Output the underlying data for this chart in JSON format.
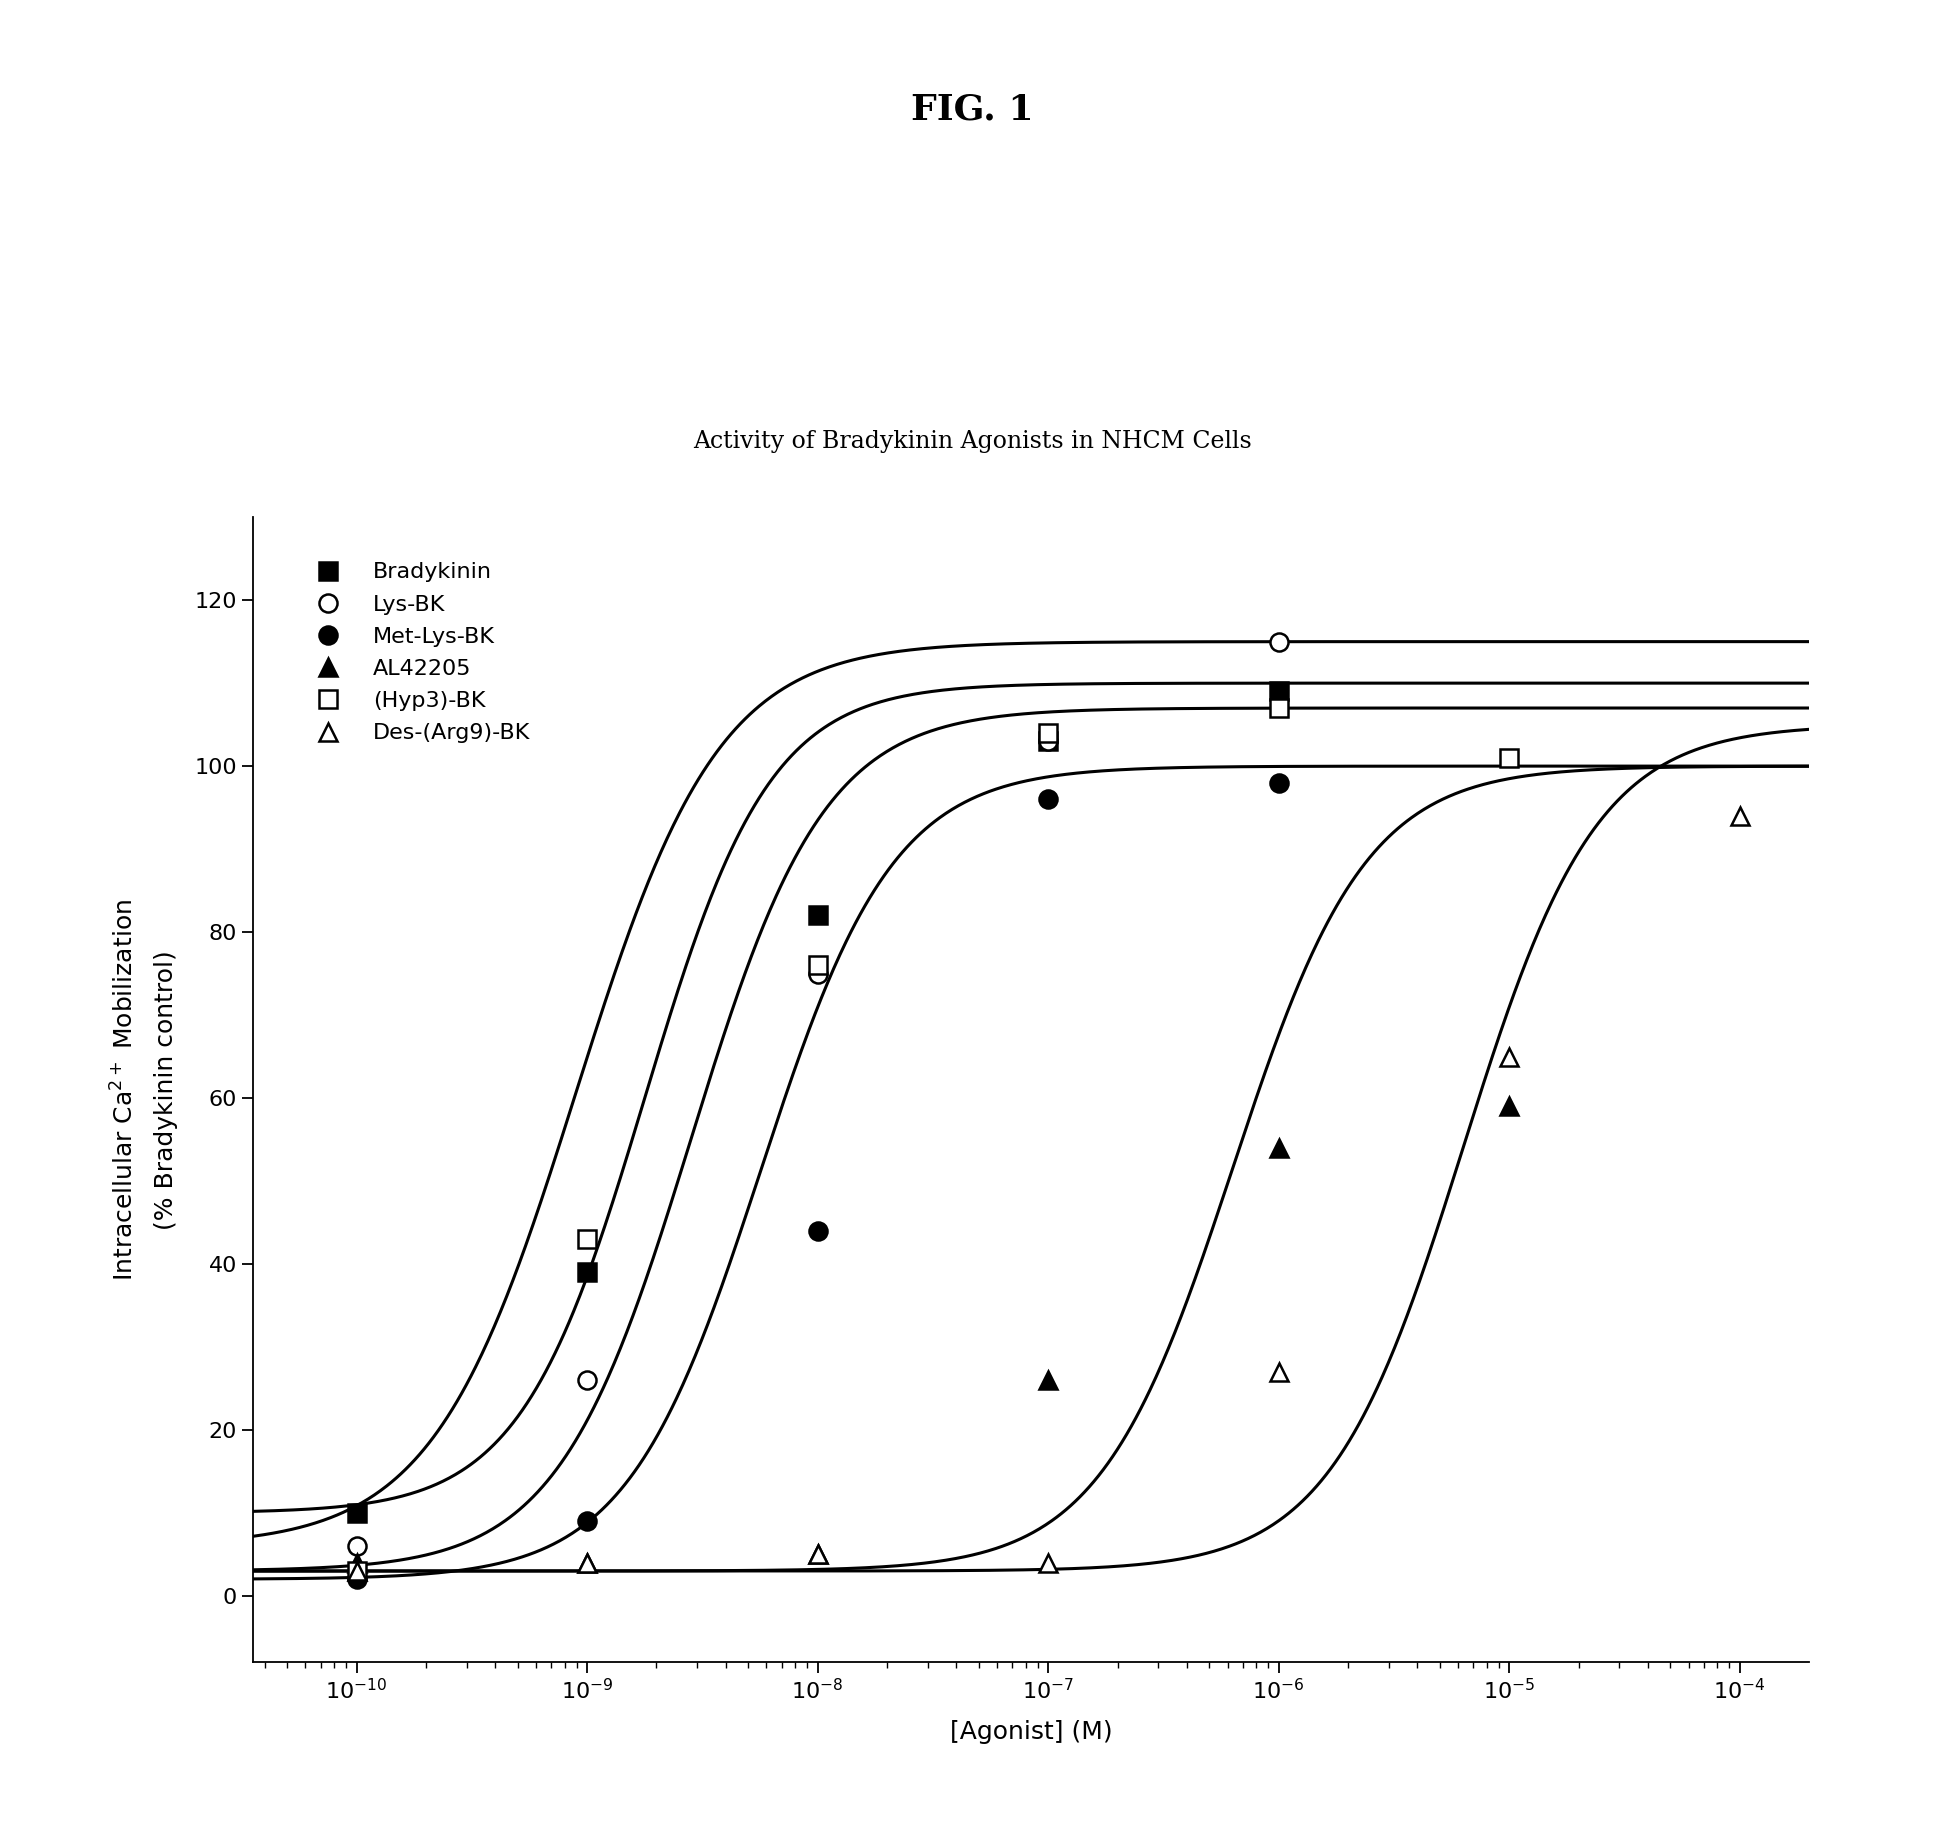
{
  "title": "Activity of Bradykinin Agonists in NHCM Cells",
  "fig_title": "FIG. 1",
  "xlabel": "[Agonist] (M)",
  "ylabel": "Intracellular Ca$^{2+}$ Mobilization\n(% Bradykinin control)",
  "xlim_log": [
    -10.45,
    -3.7
  ],
  "ylim": [
    -8,
    130
  ],
  "yticks": [
    0,
    20,
    40,
    60,
    80,
    100,
    120
  ],
  "series": [
    {
      "name": "Bradykinin",
      "marker": "s",
      "filled": true,
      "ec50_log": -8.75,
      "bottom": 10,
      "top": 110,
      "hill": 1.6,
      "data_x_log": [
        -10,
        -9,
        -8,
        -7,
        -6
      ],
      "data_y": [
        10,
        39,
        82,
        103,
        109
      ]
    },
    {
      "name": "Lys-BK",
      "marker": "o",
      "filled": false,
      "ec50_log": -9.05,
      "bottom": 6,
      "top": 115,
      "hill": 1.4,
      "data_x_log": [
        -10,
        -9,
        -8,
        -7,
        -6
      ],
      "data_y": [
        6,
        26,
        75,
        103,
        115
      ]
    },
    {
      "name": "Met-Lys-BK",
      "marker": "o",
      "filled": true,
      "ec50_log": -8.25,
      "bottom": 2,
      "top": 100,
      "hill": 1.5,
      "data_x_log": [
        -10,
        -9,
        -8,
        -7,
        -6
      ],
      "data_y": [
        2,
        9,
        44,
        96,
        98
      ]
    },
    {
      "name": "AL42205",
      "marker": "^",
      "filled": true,
      "ec50_log": -6.2,
      "bottom": 3,
      "top": 100,
      "hill": 1.5,
      "data_x_log": [
        -10,
        -9,
        -8,
        -7,
        -6,
        -5
      ],
      "data_y": [
        4,
        4,
        5,
        26,
        54,
        59
      ]
    },
    {
      "name": "(Hyp3)-BK",
      "marker": "s",
      "filled": false,
      "ec50_log": -8.55,
      "bottom": 3,
      "top": 107,
      "hill": 1.5,
      "data_x_log": [
        -10,
        -9,
        -8,
        -7,
        -6,
        -5
      ],
      "data_y": [
        3,
        43,
        76,
        104,
        107,
        101
      ]
    },
    {
      "name": "Des-(Arg9)-BK",
      "marker": "^",
      "filled": false,
      "ec50_log": -5.2,
      "bottom": 3,
      "top": 105,
      "hill": 1.5,
      "data_x_log": [
        -10,
        -9,
        -8,
        -7,
        -6,
        -5,
        -4
      ],
      "data_y": [
        3,
        4,
        5,
        4,
        27,
        65,
        94
      ]
    }
  ],
  "background_color": "white",
  "fontsize_title": 17,
  "fontsize_figtitle": 26,
  "fontsize_axis_label": 18,
  "fontsize_tick": 16,
  "fontsize_legend": 16
}
